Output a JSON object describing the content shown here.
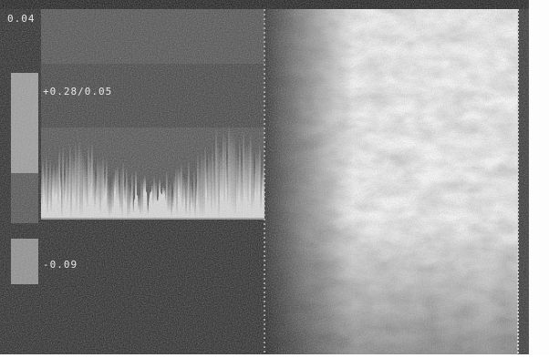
{
  "labels": {
    "scale_top": "0.04",
    "velocity": "+0.28/0.05",
    "scale_bottom": "-0.09"
  }
}
